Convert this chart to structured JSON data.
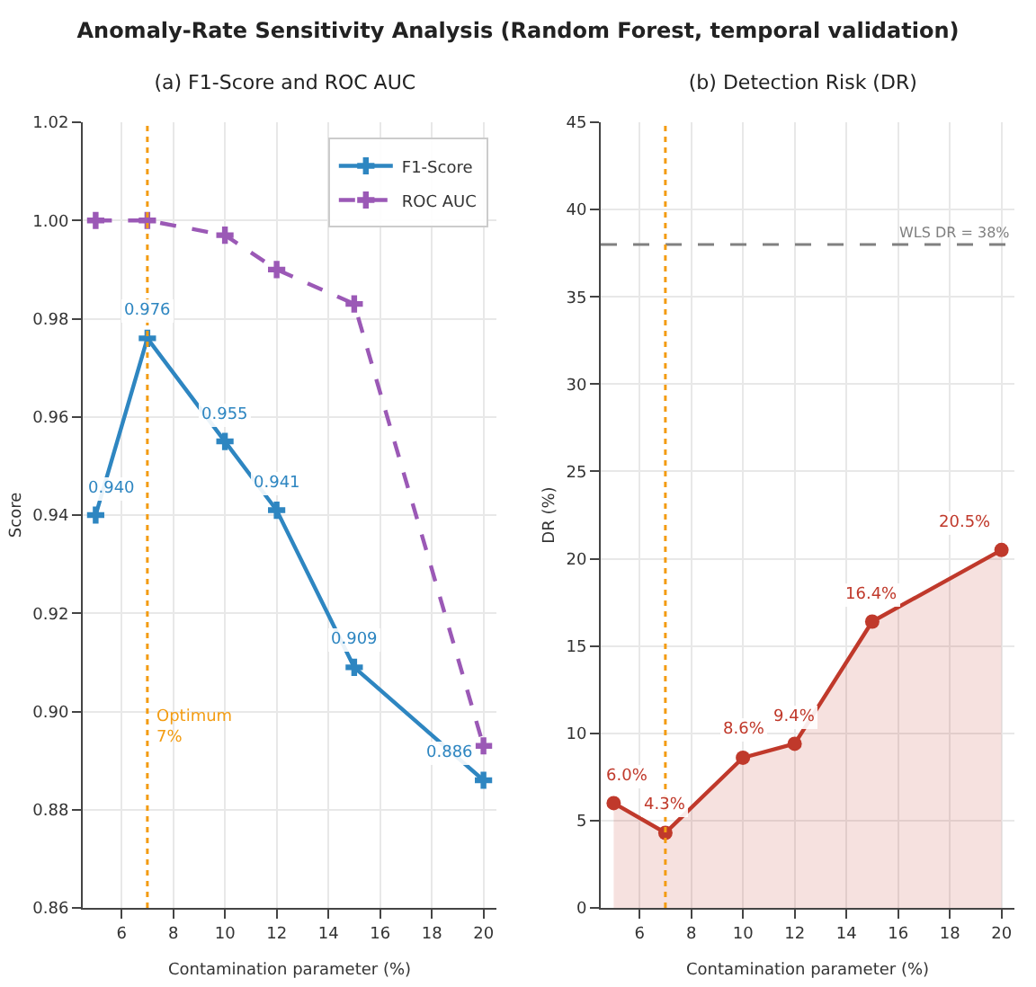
{
  "chart_data": [
    {
      "type": "line",
      "title": "Anomaly-Rate Sensitivity Analysis (Random Forest, temporal validation)",
      "subtitle": "(a) F1-Score and ROC AUC",
      "xlabel": "Contamination parameter (%)",
      "ylabel": "Score",
      "x": [
        5,
        7,
        10,
        12,
        15,
        20
      ],
      "series": [
        {
          "name": "F1-Score",
          "color": "#2e86c1",
          "values": [
            0.94,
            0.976,
            0.955,
            0.941,
            0.909,
            0.886
          ],
          "value_labels": [
            "0.940",
            "0.976",
            "0.955",
            "0.941",
            "0.909",
            "0.886"
          ],
          "marker": "cross",
          "line_style": "solid"
        },
        {
          "name": "ROC AUC",
          "color": "#9b59b6",
          "values": [
            1.0,
            1.0,
            0.997,
            0.99,
            0.983,
            0.893
          ],
          "marker": "cross",
          "line_style": "dashed"
        }
      ],
      "xlim": [
        4.5,
        20.5
      ],
      "xticks": [
        6,
        8,
        10,
        12,
        14,
        16,
        18,
        20
      ],
      "ylim": [
        0.86,
        1.02
      ],
      "yticks": [
        {
          "value": 0.86,
          "label": "0.86"
        },
        {
          "value": 0.88,
          "label": "0.88"
        },
        {
          "value": 0.9,
          "label": "0.90"
        },
        {
          "value": 0.92,
          "label": "0.92"
        },
        {
          "value": 0.94,
          "label": "0.94"
        },
        {
          "value": 0.96,
          "label": "0.96"
        },
        {
          "value": 0.98,
          "label": "0.98"
        },
        {
          "value": 1.0,
          "label": "1.00"
        },
        {
          "value": 1.02,
          "label": "1.02"
        }
      ],
      "ref_lines": [
        {
          "axis": "x",
          "value": 7,
          "label": "Optimum\n7%",
          "color": "#f39c12",
          "line_style": "dotted"
        }
      ],
      "grid": true,
      "legend": "top right"
    },
    {
      "type": "area",
      "title": "(b) Detection Risk (DR)",
      "xlabel": "Contamination parameter (%)",
      "ylabel": "DR (%)",
      "x": [
        5,
        7,
        10,
        12,
        15,
        20
      ],
      "series": [
        {
          "color": "#c0392b",
          "values": [
            6.0,
            4.3,
            8.6,
            9.4,
            16.4,
            20.5
          ],
          "value_labels": [
            "6.0%",
            "4.3%",
            "8.6%",
            "9.4%",
            "16.4%",
            "20.5%"
          ],
          "marker": "circle",
          "line_style": "solid"
        }
      ],
      "xlim": [
        4.5,
        20.5
      ],
      "xticks": [
        6,
        8,
        10,
        12,
        14,
        16,
        18,
        20
      ],
      "ylim": [
        0,
        45
      ],
      "yticks": [
        0,
        5,
        10,
        15,
        20,
        25,
        30,
        35,
        40,
        45
      ],
      "ref_lines": [
        {
          "axis": "y",
          "value": 38,
          "label": "WLS DR = 38%",
          "color": "#808080",
          "line_style": "dashed"
        },
        {
          "axis": "x",
          "value": 7,
          "color": "#f39c12",
          "line_style": "dotted"
        }
      ],
      "grid": true
    }
  ]
}
